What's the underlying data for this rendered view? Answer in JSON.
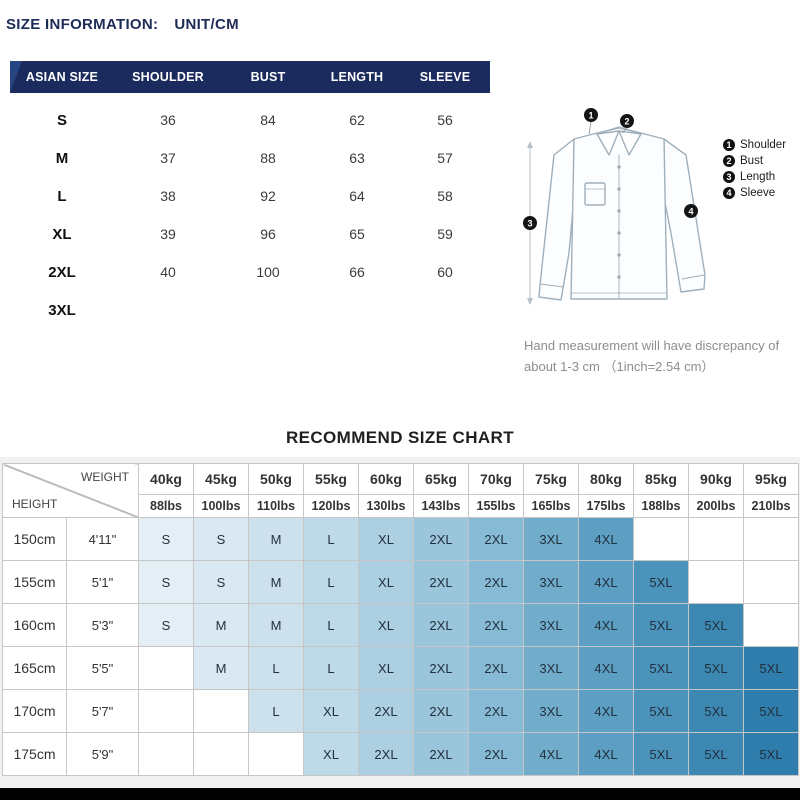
{
  "page": {
    "title_label": "SIZE INFORMATION:",
    "unit_label": "UNIT/CM"
  },
  "size_table": {
    "headers": [
      "ASIAN SIZE",
      "SHOULDER",
      "BUST",
      "LENGTH",
      "SLEEVE"
    ],
    "rows": [
      {
        "size": "S",
        "values": [
          "36",
          "84",
          "62",
          "56"
        ]
      },
      {
        "size": "M",
        "values": [
          "37",
          "88",
          "63",
          "57"
        ]
      },
      {
        "size": "L",
        "values": [
          "38",
          "92",
          "64",
          "58"
        ]
      },
      {
        "size": "XL",
        "values": [
          "39",
          "96",
          "65",
          "59"
        ]
      },
      {
        "size": "2XL",
        "values": [
          "40",
          "100",
          "66",
          "60"
        ]
      },
      {
        "size": "3XL",
        "values": [
          "",
          "",
          "",
          ""
        ]
      }
    ]
  },
  "diagram": {
    "legend": [
      {
        "num": "1",
        "label": "Shoulder"
      },
      {
        "num": "2",
        "label": "Bust"
      },
      {
        "num": "3",
        "label": "Length"
      },
      {
        "num": "4",
        "label": "Sleeve"
      }
    ],
    "note_line1": "Hand measurement will have discrepancy of",
    "note_line2": "about 1-3 cm （1inch=2.54 cm）"
  },
  "recommend_chart": {
    "title": "RECOMMEND SIZE CHART",
    "corner": {
      "weight": "WEIGHT",
      "height": "HEIGHT"
    },
    "weights_kg": [
      "40kg",
      "45kg",
      "50kg",
      "55kg",
      "60kg",
      "65kg",
      "70kg",
      "75kg",
      "80kg",
      "85kg",
      "90kg",
      "95kg"
    ],
    "weights_lbs": [
      "88lbs",
      "100lbs",
      "110lbs",
      "120lbs",
      "130lbs",
      "143lbs",
      "155lbs",
      "165lbs",
      "175lbs",
      "188lbs",
      "200lbs",
      "210lbs"
    ],
    "rows": [
      {
        "height_cm": "150cm",
        "height_ft": "4'11\"",
        "sizes": [
          "S",
          "S",
          "M",
          "L",
          "XL",
          "2XL",
          "2XL",
          "3XL",
          "4XL",
          "",
          "",
          ""
        ]
      },
      {
        "height_cm": "155cm",
        "height_ft": "5'1\"",
        "sizes": [
          "S",
          "S",
          "M",
          "L",
          "XL",
          "2XL",
          "2XL",
          "3XL",
          "4XL",
          "5XL",
          "",
          ""
        ]
      },
      {
        "height_cm": "160cm",
        "height_ft": "5'3\"",
        "sizes": [
          "S",
          "M",
          "M",
          "L",
          "XL",
          "2XL",
          "2XL",
          "3XL",
          "4XL",
          "5XL",
          "5XL",
          ""
        ]
      },
      {
        "height_cm": "165cm",
        "height_ft": "5'5\"",
        "sizes": [
          "",
          "M",
          "L",
          "L",
          "XL",
          "2XL",
          "2XL",
          "3XL",
          "4XL",
          "5XL",
          "5XL",
          "5XL"
        ]
      },
      {
        "height_cm": "170cm",
        "height_ft": "5'7\"",
        "sizes": [
          "",
          "",
          "L",
          "XL",
          "2XL",
          "2XL",
          "2XL",
          "3XL",
          "4XL",
          "5XL",
          "5XL",
          "5XL"
        ]
      },
      {
        "height_cm": "175cm",
        "height_ft": "5'9\"",
        "sizes": [
          "",
          "",
          "",
          "XL",
          "2XL",
          "2XL",
          "2XL",
          "4XL",
          "4XL",
          "5XL",
          "5XL",
          "5XL"
        ]
      }
    ],
    "column_colors": [
      "#e4eef5",
      "#d9e8f1",
      "#cde1ed",
      "#bed9e8",
      "#accfe2",
      "#9ac5db",
      "#87bad4",
      "#71adcb",
      "#5c9fc2",
      "#4b93ba",
      "#3c88b3",
      "#2f7dac"
    ]
  },
  "footer": {
    "bar_color": "#000000"
  }
}
